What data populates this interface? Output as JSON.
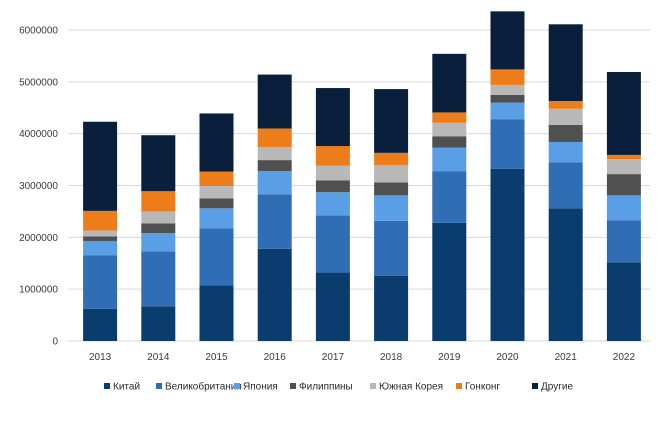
{
  "chart_data": {
    "type": "bar",
    "stacked": true,
    "title": "",
    "xlabel": "",
    "ylabel": "",
    "ylim": [
      0,
      6000000
    ],
    "yticks": [
      0,
      1000000,
      2000000,
      3000000,
      4000000,
      5000000,
      6000000
    ],
    "grid": true,
    "legend_position": "bottom",
    "categories": [
      "2013",
      "2014",
      "2015",
      "2016",
      "2017",
      "2018",
      "2019",
      "2020",
      "2021",
      "2022"
    ],
    "series": [
      {
        "name": "Китай",
        "color": "#0b3c6e",
        "values": [
          620000,
          670000,
          1070000,
          1780000,
          1320000,
          1260000,
          2280000,
          3320000,
          2560000,
          1520000
        ]
      },
      {
        "name": "Великобритания",
        "color": "#2f6db5",
        "values": [
          1030000,
          1060000,
          1100000,
          1050000,
          1100000,
          1060000,
          990000,
          960000,
          890000,
          810000
        ]
      },
      {
        "name": "Япония",
        "color": "#5a9ee6",
        "values": [
          280000,
          350000,
          390000,
          450000,
          450000,
          490000,
          460000,
          320000,
          390000,
          480000
        ]
      },
      {
        "name": "Филиппины",
        "color": "#505050",
        "values": [
          90000,
          190000,
          190000,
          210000,
          230000,
          250000,
          220000,
          150000,
          330000,
          410000
        ]
      },
      {
        "name": "Южная Корея",
        "color": "#b8b8b8",
        "values": [
          110000,
          230000,
          240000,
          250000,
          280000,
          330000,
          260000,
          190000,
          310000,
          290000
        ]
      },
      {
        "name": "Гонконг",
        "color": "#ed7d1a",
        "values": [
          380000,
          390000,
          280000,
          360000,
          380000,
          240000,
          200000,
          300000,
          150000,
          80000
        ]
      },
      {
        "name": "Другие",
        "color": "#0a1f3c",
        "values": [
          1720000,
          1080000,
          1120000,
          1040000,
          1120000,
          1230000,
          1130000,
          1120000,
          1480000,
          1600000
        ]
      }
    ],
    "legend_entries": [
      "Китай",
      "Великобритания",
      "Япония",
      "Филиппины",
      "Южная Корея",
      "Гонконг",
      "Другие"
    ]
  }
}
